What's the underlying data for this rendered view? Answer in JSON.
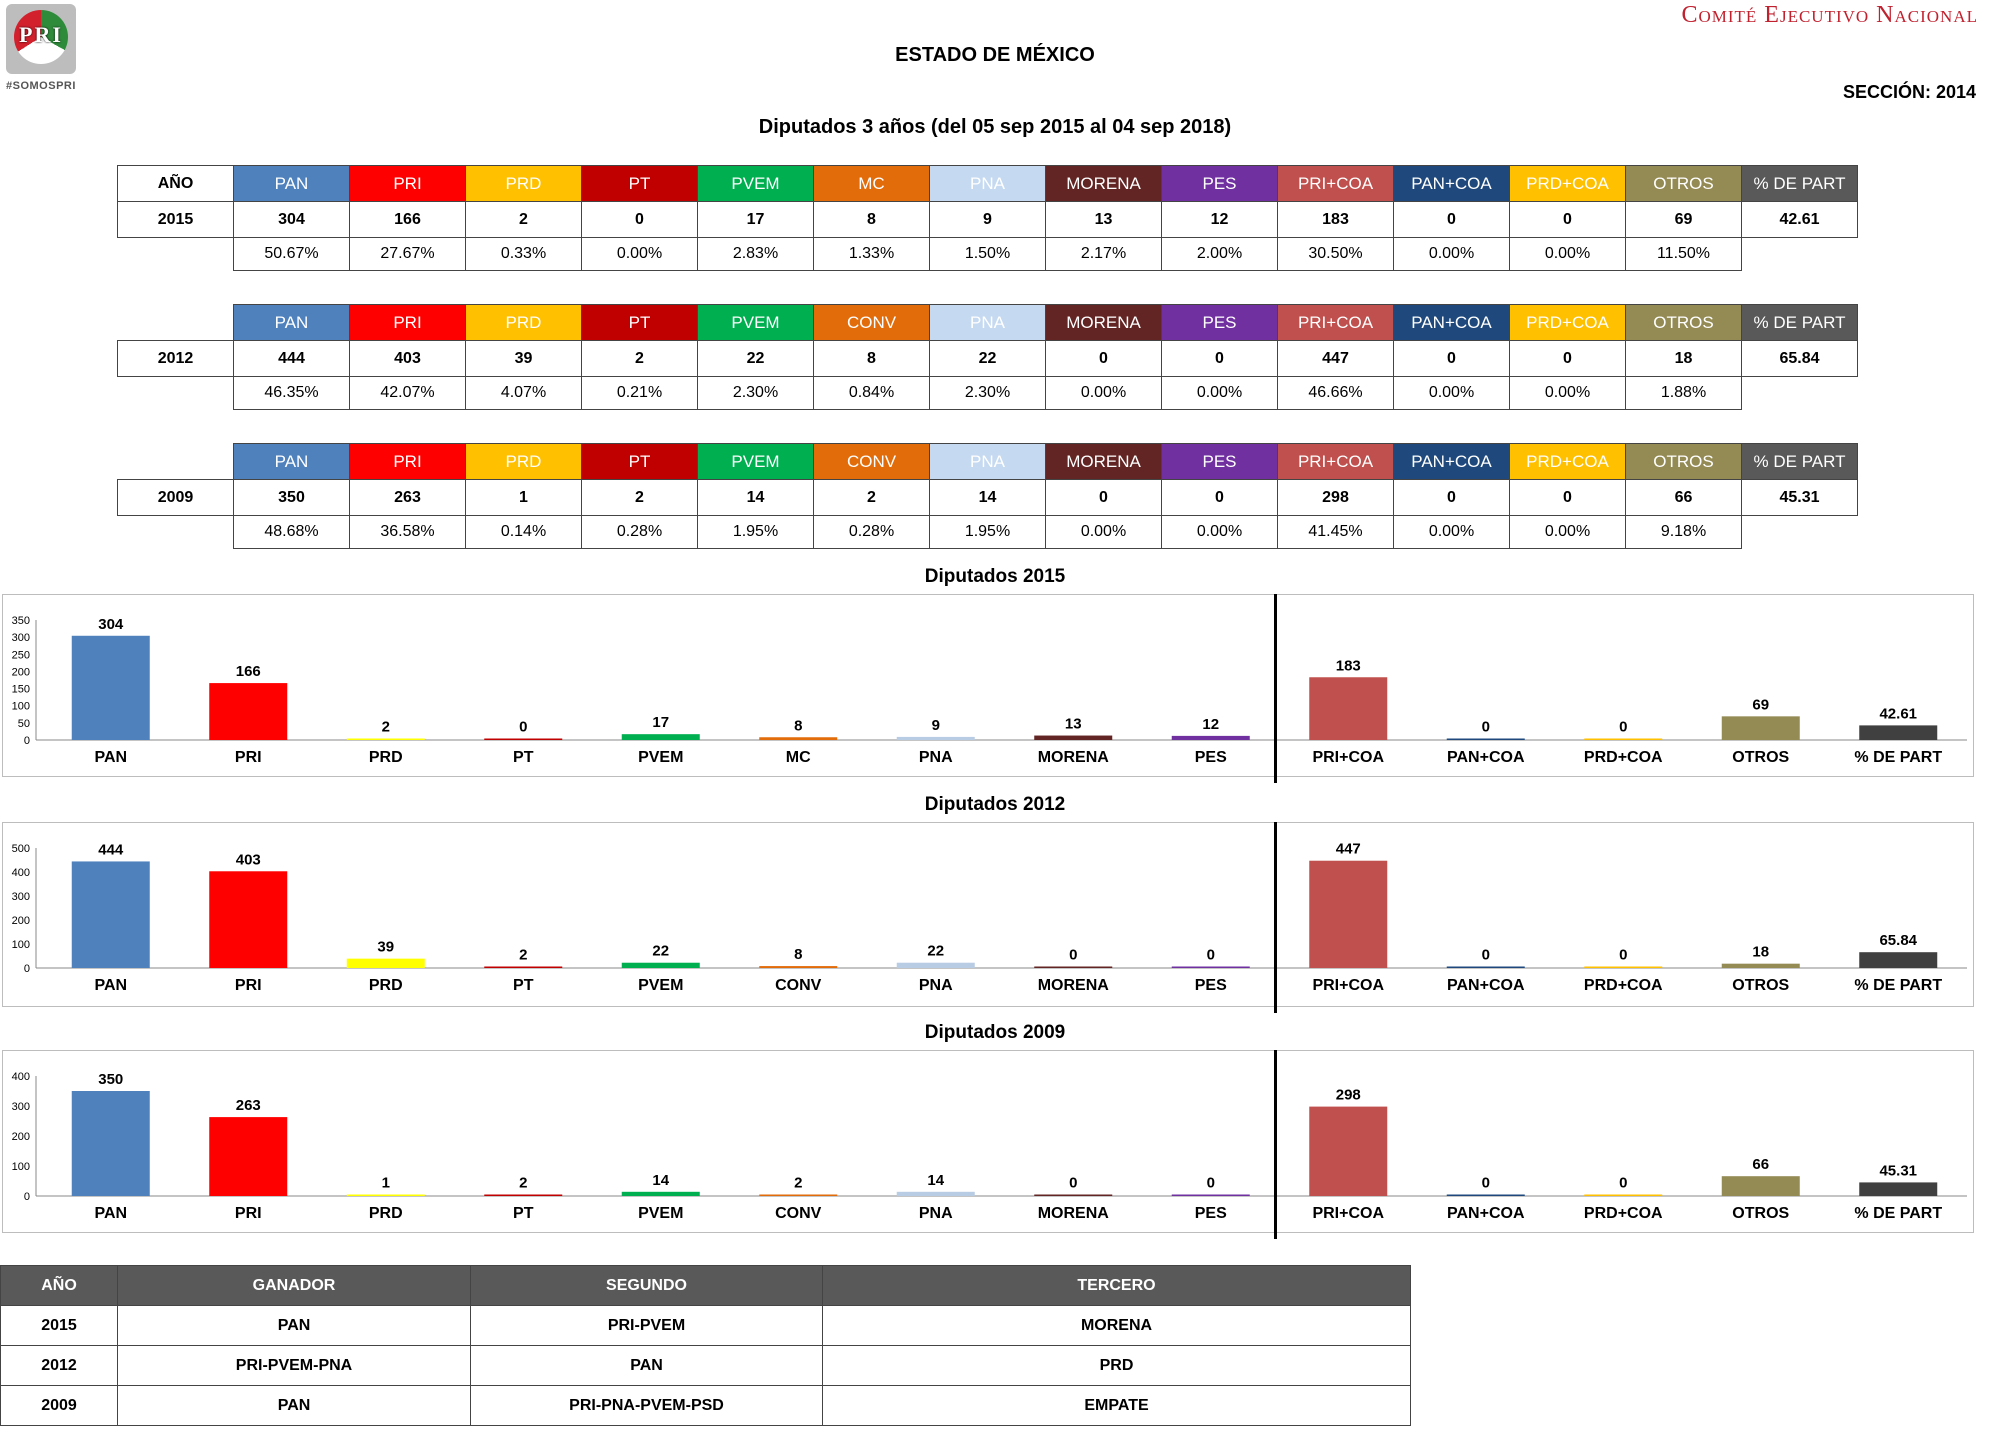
{
  "header": {
    "logo_text": "PRI",
    "hashtag": "#SOMOSPRI",
    "committee": "Comité Ejecutivo Nacional",
    "state": "ESTADO DE MÉXICO",
    "section": "SECCIÓN: 2014",
    "period": "Diputados 3 años (del 05 sep 2015 al 04 sep 2018)"
  },
  "colors": [
    "#4f81bd",
    "#ff0000",
    "#ffc000",
    "#c00000",
    "#00b050",
    "#e26b0a",
    "#c5d9f1",
    "#632523",
    "#7030a0",
    "#c0504d",
    "#1f497d",
    "#ffc000",
    "#948a54",
    "#595959"
  ],
  "chart_bar_colors": {
    "2015": [
      "#4f81bd",
      "#ff0000",
      "#ffff00",
      "#c00000",
      "#00b050",
      "#e26b0a",
      "#b8cce4",
      "#632523",
      "#7030a0",
      "#c0504d",
      "#1f497d",
      "#ffc000",
      "#948a54",
      "#404040"
    ],
    "2012": [
      "#4f81bd",
      "#ff0000",
      "#ffff00",
      "#c00000",
      "#00b050",
      "#e26b0a",
      "#b8cce4",
      "#632523",
      "#7030a0",
      "#c0504d",
      "#1f497d",
      "#ffc000",
      "#948a54",
      "#404040"
    ],
    "2009": [
      "#4f81bd",
      "#ff0000",
      "#ffff00",
      "#c00000",
      "#00b050",
      "#e26b0a",
      "#b8cce4",
      "#632523",
      "#7030a0",
      "#c0504d",
      "#1f497d",
      "#ffc000",
      "#948a54",
      "#404040"
    ]
  },
  "tables": [
    {
      "corner_label": "AÑO",
      "headers": [
        "PAN",
        "PRI",
        "PRD",
        "PT",
        "PVEM",
        "MC",
        "PNA",
        "MORENA",
        "PES",
        "PRI+COA",
        "PAN+COA",
        "PRD+COA",
        "OTROS",
        "% DE PART"
      ],
      "year": "2015",
      "values": [
        "304",
        "166",
        "2",
        "0",
        "17",
        "8",
        "9",
        "13",
        "12",
        "183",
        "0",
        "0",
        "69",
        "42.61"
      ],
      "percents": [
        "50.67%",
        "27.67%",
        "0.33%",
        "0.00%",
        "2.83%",
        "1.33%",
        "1.50%",
        "2.17%",
        "2.00%",
        "30.50%",
        "0.00%",
        "0.00%",
        "11.50%"
      ]
    },
    {
      "corner_label": "",
      "headers": [
        "PAN",
        "PRI",
        "PRD",
        "PT",
        "PVEM",
        "CONV",
        "PNA",
        "MORENA",
        "PES",
        "PRI+COA",
        "PAN+COA",
        "PRD+COA",
        "OTROS",
        "% DE PART"
      ],
      "year": "2012",
      "values": [
        "444",
        "403",
        "39",
        "2",
        "22",
        "8",
        "22",
        "0",
        "0",
        "447",
        "0",
        "0",
        "18",
        "65.84"
      ],
      "percents": [
        "46.35%",
        "42.07%",
        "4.07%",
        "0.21%",
        "2.30%",
        "0.84%",
        "2.30%",
        "0.00%",
        "0.00%",
        "46.66%",
        "0.00%",
        "0.00%",
        "1.88%"
      ]
    },
    {
      "corner_label": "",
      "headers": [
        "PAN",
        "PRI",
        "PRD",
        "PT",
        "PVEM",
        "CONV",
        "PNA",
        "MORENA",
        "PES",
        "PRI+COA",
        "PAN+COA",
        "PRD+COA",
        "OTROS",
        "% DE PART"
      ],
      "year": "2009",
      "values": [
        "350",
        "263",
        "1",
        "2",
        "14",
        "2",
        "14",
        "0",
        "0",
        "298",
        "0",
        "0",
        "66",
        "45.31"
      ],
      "percents": [
        "48.68%",
        "36.58%",
        "0.14%",
        "0.28%",
        "1.95%",
        "0.28%",
        "1.95%",
        "0.00%",
        "0.00%",
        "41.45%",
        "0.00%",
        "0.00%",
        "9.18%"
      ]
    }
  ],
  "chart_data": [
    {
      "type": "bar",
      "title": "Diputados  2015",
      "categories": [
        "PAN",
        "PRI",
        "PRD",
        "PT",
        "PVEM",
        "MC",
        "PNA",
        "MORENA",
        "PES",
        "PRI+COA",
        "PAN+COA",
        "PRD+COA",
        "OTROS",
        "% DE PART"
      ],
      "values": [
        304,
        166,
        2,
        0,
        17,
        8,
        9,
        13,
        12,
        183,
        0,
        0,
        69,
        42.61
      ],
      "value_labels": [
        "304",
        "166",
        "2",
        "0",
        "17",
        "8",
        "9",
        "13",
        "12",
        "183",
        "0",
        "0",
        "69",
        "42.61"
      ],
      "yticks": [
        "0",
        "50",
        "100",
        "150",
        "200",
        "250",
        "300",
        "350"
      ],
      "ylim": [
        0,
        350
      ],
      "divider_after": "PES",
      "grid": false
    },
    {
      "type": "bar",
      "title": "Diputados 2012",
      "categories": [
        "PAN",
        "PRI",
        "PRD",
        "PT",
        "PVEM",
        "CONV",
        "PNA",
        "MORENA",
        "PES",
        "PRI+COA",
        "PAN+COA",
        "PRD+COA",
        "OTROS",
        "% DE PART"
      ],
      "values": [
        444,
        403,
        39,
        2,
        22,
        8,
        22,
        0,
        0,
        447,
        0,
        0,
        18,
        65.84
      ],
      "value_labels": [
        "444",
        "403",
        "39",
        "2",
        "22",
        "8",
        "22",
        "0",
        "0",
        "447",
        "0",
        "0",
        "18",
        "65.84"
      ],
      "yticks": [
        "0",
        "100",
        "200",
        "300",
        "400",
        "500"
      ],
      "ylim": [
        0,
        500
      ],
      "divider_after": "PES",
      "grid": false
    },
    {
      "type": "bar",
      "title": "Diputados 2009",
      "categories": [
        "PAN",
        "PRI",
        "PRD",
        "PT",
        "PVEM",
        "CONV",
        "PNA",
        "MORENA",
        "PES",
        "PRI+COA",
        "PAN+COA",
        "PRD+COA",
        "OTROS",
        "% DE PART"
      ],
      "values": [
        350,
        263,
        1,
        2,
        14,
        2,
        14,
        0,
        0,
        298,
        0,
        0,
        66,
        45.31
      ],
      "value_labels": [
        "350",
        "263",
        "1",
        "2",
        "14",
        "2",
        "14",
        "0",
        "0",
        "298",
        "0",
        "0",
        "66",
        "45.31"
      ],
      "yticks": [
        "0",
        "100",
        "200",
        "300",
        "400"
      ],
      "ylim": [
        0,
        400
      ],
      "divider_after": "PES",
      "grid": false
    }
  ],
  "results": {
    "headers": [
      "AÑO",
      "GANADOR",
      "SEGUNDO",
      "TERCERO"
    ],
    "rows": [
      [
        "2015",
        "PAN",
        "PRI-PVEM",
        "MORENA"
      ],
      [
        "2012",
        "PRI-PVEM-PNA",
        "PAN",
        "PRD"
      ],
      [
        "2009",
        "PAN",
        "PRI-PNA-PVEM-PSD",
        "EMPATE"
      ]
    ]
  }
}
